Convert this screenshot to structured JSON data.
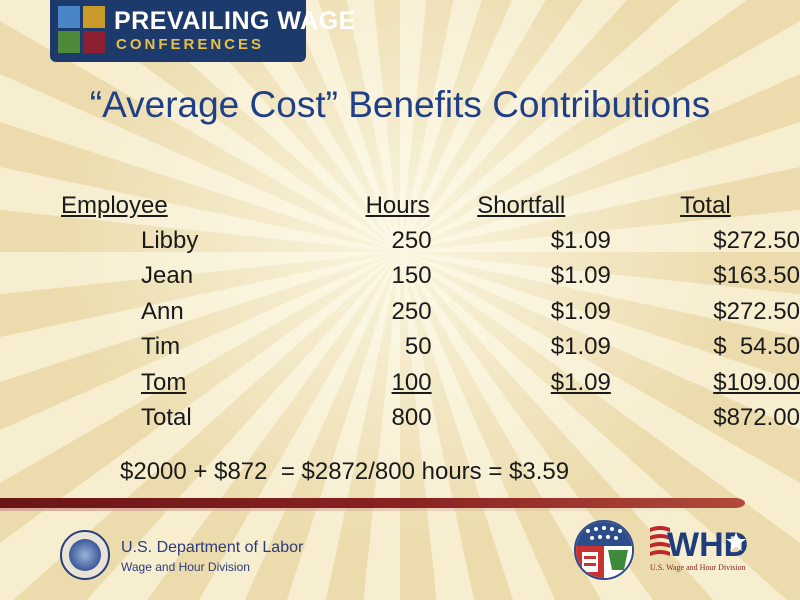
{
  "header": {
    "logo_title": "PREVAILING WAGE",
    "logo_subtitle": "CONFERENCES",
    "logo_colors": [
      "#4a86c5",
      "#c99a2a",
      "#4f8a3b",
      "#8c2030"
    ]
  },
  "slide": {
    "title": "“Average Cost” Benefits Contributions",
    "table": {
      "headers": [
        "Employee",
        "Hours",
        "Shortfall",
        "Total"
      ],
      "rows": [
        {
          "employee": "Libby",
          "hours": "250",
          "shortfall": "$1.09",
          "total": "$272.50"
        },
        {
          "employee": "Jean",
          "hours": "150",
          "shortfall": "$1.09",
          "total": "$163.50"
        },
        {
          "employee": "Ann",
          "hours": "250",
          "shortfall": "$1.09",
          "total": "$272.50"
        },
        {
          "employee": "Tim",
          "hours": "50",
          "shortfall": "$1.09",
          "total": "$  54.50"
        },
        {
          "employee": "Tom",
          "hours": "100",
          "shortfall": "$1.09",
          "total": "$109.00"
        }
      ],
      "total_row": {
        "label": "Total",
        "hours": "800",
        "shortfall": "",
        "total": "$872.00"
      }
    },
    "equation": "$2000 + $872  = $2872/800 hours = $3.59"
  },
  "footer": {
    "department": "U.S. Department of Labor",
    "division": "Wage and Hour Division",
    "whd_logo_text": "WHD",
    "whd_caption": "U.S. Wage and Hour Division",
    "divider_color": "#7a1c1c",
    "seal_icon": "dol-seal-icon",
    "emblem_icon": "star-emblem-icon"
  }
}
